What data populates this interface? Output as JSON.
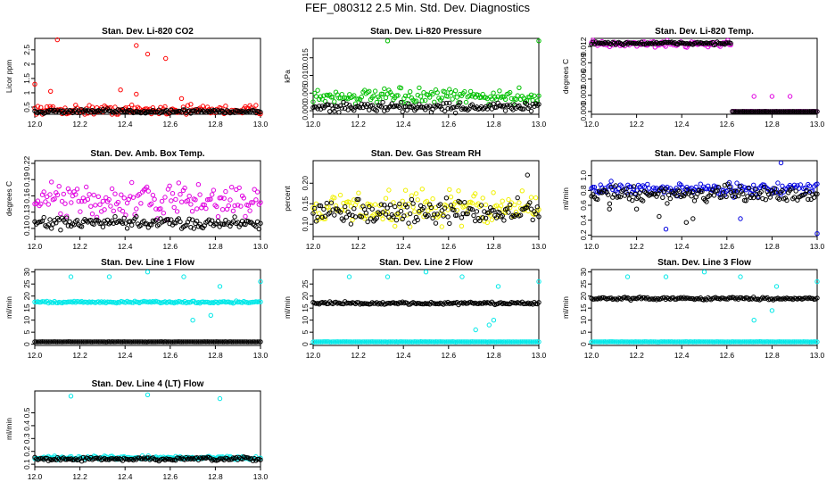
{
  "title": "FEF_080312  2.5 Min. Std. Dev. Diagnostics",
  "chart_data": [
    {
      "type": "scatter",
      "title": "Stan. Dev. Li-820 CO2",
      "ylabel": "Licor ppm",
      "xlim": [
        12.0,
        13.0
      ],
      "ylim": [
        0.25,
        2.9
      ],
      "xticks": [
        12.0,
        12.2,
        12.4,
        12.6,
        12.8,
        13.0
      ],
      "xtick_labels": [
        "12.0",
        "12.2",
        "12.4",
        "12.6",
        "12.8",
        "13.0"
      ],
      "yticks": [
        0.5,
        1.0,
        1.5,
        2.0,
        2.5
      ],
      "ytick_labels": [
        "0.5",
        "1",
        "1.5",
        "2",
        "2.5"
      ],
      "series": [
        {
          "name": "a",
          "color": "#ff0000",
          "base": 0.4,
          "spread": 0.25,
          "outliers": [
            [
              12.1,
              2.85
            ],
            [
              12.45,
              2.65
            ],
            [
              12.5,
              2.35
            ],
            [
              12.58,
              2.2
            ],
            [
              12.0,
              1.3
            ],
            [
              12.07,
              1.05
            ],
            [
              12.38,
              1.1
            ],
            [
              12.45,
              0.95
            ],
            [
              12.65,
              0.8
            ]
          ]
        },
        {
          "name": "b",
          "color": "#000000",
          "base": 0.35,
          "spread": 0.1,
          "outliers": []
        }
      ]
    },
    {
      "type": "scatter",
      "title": "Stan. Dev. Li-820 Pressure",
      "ylabel": "kPa",
      "xlim": [
        12.0,
        13.0
      ],
      "ylim": [
        -0.001,
        0.0205
      ],
      "xticks": [
        12.0,
        12.2,
        12.4,
        12.6,
        12.8,
        13.0
      ],
      "xtick_labels": [
        "12.0",
        "12.2",
        "12.4",
        "12.6",
        "12.8",
        "13.0"
      ],
      "yticks": [
        0.0,
        0.005,
        0.01,
        0.015
      ],
      "ytick_labels": [
        "0.000",
        "0.005",
        "0.010",
        "0.015"
      ],
      "series": [
        {
          "name": "a",
          "color": "#00c000",
          "base": 0.004,
          "spread": 0.003,
          "outliers": [
            [
              12.33,
              0.0198
            ],
            [
              13.0,
              0.0198
            ]
          ]
        },
        {
          "name": "b",
          "color": "#000000",
          "base": 0.001,
          "spread": 0.002,
          "outliers": []
        }
      ]
    },
    {
      "type": "scatter",
      "title": "Stan. Dev. Li-820 Temp.",
      "ylabel": "degrees C",
      "xlim": [
        12.0,
        13.0
      ],
      "ylim": [
        -0.0005,
        0.0135
      ],
      "xticks": [
        12.0,
        12.2,
        12.4,
        12.6,
        12.8,
        13.0
      ],
      "xtick_labels": [
        "12.0",
        "12.2",
        "12.4",
        "12.6",
        "12.8",
        "13.0"
      ],
      "yticks": [
        0.0,
        0.003,
        0.006,
        0.009,
        0.012
      ],
      "ytick_labels": [
        "0.000",
        "0.003",
        "0.006",
        "0.009",
        "0.012"
      ],
      "series": [
        {
          "name": "a",
          "color": "#e000e0",
          "base": 0.0125,
          "spread": 0.0008,
          "break_at": 12.62,
          "after": 0.0,
          "outliers": [
            [
              12.72,
              0.0028
            ],
            [
              12.8,
              0.0028
            ],
            [
              12.88,
              0.0028
            ]
          ]
        },
        {
          "name": "b",
          "color": "#000000",
          "base": 0.0126,
          "spread": 0.0004,
          "break_at": 12.62,
          "after": 0.0,
          "outliers": []
        }
      ]
    },
    {
      "type": "scatter",
      "title": "Stan. Dev. Amb. Box Temp.",
      "ylabel": "degrees C",
      "xlim": [
        12.0,
        13.0
      ],
      "ylim": [
        0.085,
        0.225
      ],
      "xticks": [
        12.0,
        12.2,
        12.4,
        12.6,
        12.8,
        13.0
      ],
      "xtick_labels": [
        "12.0",
        "12.2",
        "12.4",
        "12.6",
        "12.8",
        "13.0"
      ],
      "yticks": [
        0.1,
        0.13,
        0.16,
        0.19,
        0.22
      ],
      "ytick_labels": [
        "0.10",
        "0.13",
        "0.16",
        "0.19",
        "0.22"
      ],
      "series": [
        {
          "name": "a",
          "color": "#e000e0",
          "base": 0.15,
          "spread": 0.045,
          "outliers": []
        },
        {
          "name": "b",
          "color": "#000000",
          "base": 0.11,
          "spread": 0.015,
          "outliers": []
        }
      ]
    },
    {
      "type": "scatter",
      "title": "Stan. Dev. Gas Stream RH",
      "ylabel": "percent",
      "xlim": [
        12.0,
        13.0
      ],
      "ylim": [
        0.07,
        0.255
      ],
      "xticks": [
        12.0,
        12.2,
        12.4,
        12.6,
        12.8,
        13.0
      ],
      "xtick_labels": [
        "12.0",
        "12.2",
        "12.4",
        "12.6",
        "12.8",
        "13.0"
      ],
      "yticks": [
        0.1,
        0.15,
        0.2
      ],
      "ytick_labels": [
        "0.10",
        "0.15",
        "0.20"
      ],
      "series": [
        {
          "name": "a",
          "color": "#f0f000",
          "base": 0.14,
          "spread": 0.06,
          "outliers": []
        },
        {
          "name": "b",
          "color": "#000000",
          "base": 0.13,
          "spread": 0.04,
          "outliers": [
            [
              12.95,
              0.22
            ]
          ]
        }
      ]
    },
    {
      "type": "scatter",
      "title": "Stan. Dev. Sample Flow",
      "ylabel": "ml/min",
      "xlim": [
        12.0,
        13.0
      ],
      "ylim": [
        0.18,
        1.2
      ],
      "xticks": [
        12.0,
        12.2,
        12.4,
        12.6,
        12.8,
        13.0
      ],
      "xtick_labels": [
        "12.0",
        "12.2",
        "12.4",
        "12.6",
        "12.8",
        "13.0"
      ],
      "yticks": [
        0.2,
        0.4,
        0.6,
        0.8,
        1.0
      ],
      "ytick_labels": [
        "0.2",
        "0.4",
        "0.6",
        "0.8",
        "1.0"
      ],
      "series": [
        {
          "name": "a",
          "color": "#0000e0",
          "base": 0.82,
          "spread": 0.12,
          "outliers": [
            [
              12.84,
              1.17
            ],
            [
              12.33,
              0.28
            ],
            [
              12.66,
              0.42
            ],
            [
              13.0,
              0.22
            ]
          ]
        },
        {
          "name": "b",
          "color": "#000000",
          "base": 0.75,
          "spread": 0.15,
          "outliers": [
            [
              12.42,
              0.37
            ],
            [
              12.45,
              0.42
            ],
            [
              12.3,
              0.45
            ],
            [
              12.2,
              0.55
            ],
            [
              12.08,
              0.55
            ]
          ]
        }
      ]
    },
    {
      "type": "scatter",
      "title": "Stan. Dev. Line 1 Flow",
      "ylabel": "ml/min",
      "xlim": [
        12.0,
        13.0
      ],
      "ylim": [
        -0.5,
        31
      ],
      "xticks": [
        12.0,
        12.2,
        12.4,
        12.6,
        12.8,
        13.0
      ],
      "xtick_labels": [
        "12.0",
        "12.2",
        "12.4",
        "12.6",
        "12.8",
        "13.0"
      ],
      "yticks": [
        0,
        5,
        10,
        15,
        20,
        25,
        30
      ],
      "ytick_labels": [
        "0",
        "5",
        "10",
        "15",
        "20",
        "25",
        "30"
      ],
      "series": [
        {
          "name": "a",
          "color": "#00e8e8",
          "base": 17.5,
          "spread": 0.6,
          "outliers": [
            [
              12.16,
              28
            ],
            [
              12.33,
              28
            ],
            [
              12.5,
              30
            ],
            [
              12.66,
              28
            ],
            [
              12.82,
              24
            ],
            [
              13.0,
              26
            ],
            [
              12.78,
              12
            ],
            [
              12.7,
              10
            ]
          ]
        },
        {
          "name": "b",
          "color": "#000000",
          "base": 1.0,
          "spread": 0.1,
          "outliers": []
        }
      ]
    },
    {
      "type": "scatter",
      "title": "Stan. Dev. Line 2 Flow",
      "ylabel": "ml/min",
      "xlim": [
        12.0,
        13.0
      ],
      "ylim": [
        -0.5,
        31
      ],
      "xticks": [
        12.0,
        12.2,
        12.4,
        12.6,
        12.8,
        13.0
      ],
      "xtick_labels": [
        "12.0",
        "12.2",
        "12.4",
        "12.6",
        "12.8",
        "13.0"
      ],
      "yticks": [
        0,
        5,
        10,
        15,
        20,
        25
      ],
      "ytick_labels": [
        "0",
        "5",
        "10",
        "15",
        "20",
        "25"
      ],
      "series": [
        {
          "name": "a",
          "color": "#00e8e8",
          "base": 1.0,
          "spread": 0.1,
          "outliers": [
            [
              12.16,
              28
            ],
            [
              12.33,
              28
            ],
            [
              12.5,
              30
            ],
            [
              12.66,
              28
            ],
            [
              12.82,
              24
            ],
            [
              13.0,
              26
            ],
            [
              12.78,
              8
            ],
            [
              12.72,
              6
            ],
            [
              12.8,
              10
            ]
          ]
        },
        {
          "name": "b",
          "color": "#000000",
          "base": 17.0,
          "spread": 0.8,
          "outliers": []
        }
      ]
    },
    {
      "type": "scatter",
      "title": "Stan. Dev. Line 3 Flow",
      "ylabel": "ml/min",
      "xlim": [
        12.0,
        13.0
      ],
      "ylim": [
        -0.5,
        31
      ],
      "xticks": [
        12.0,
        12.2,
        12.4,
        12.6,
        12.8,
        13.0
      ],
      "xtick_labels": [
        "12.0",
        "12.2",
        "12.4",
        "12.6",
        "12.8",
        "13.0"
      ],
      "yticks": [
        0,
        5,
        10,
        15,
        20,
        25,
        30
      ],
      "ytick_labels": [
        "0",
        "5",
        "10",
        "15",
        "20",
        "25",
        "30"
      ],
      "series": [
        {
          "name": "a",
          "color": "#00e8e8",
          "base": 1.0,
          "spread": 0.1,
          "outliers": [
            [
              12.16,
              28
            ],
            [
              12.33,
              28
            ],
            [
              12.5,
              30
            ],
            [
              12.66,
              28
            ],
            [
              12.82,
              24
            ],
            [
              13.0,
              26
            ],
            [
              12.72,
              10
            ],
            [
              12.8,
              14
            ]
          ]
        },
        {
          "name": "b",
          "color": "#000000",
          "base": 19.0,
          "spread": 0.8,
          "outliers": []
        }
      ]
    },
    {
      "type": "scatter",
      "title": "Stan. Dev. Line 4 (LT) Flow",
      "ylabel": "ml/min",
      "xlim": [
        12.0,
        13.0
      ],
      "ylim": [
        0.08,
        0.67
      ],
      "xticks": [
        12.0,
        12.2,
        12.4,
        12.6,
        12.8,
        13.0
      ],
      "xtick_labels": [
        "12.0",
        "12.2",
        "12.4",
        "12.6",
        "12.8",
        "13.0"
      ],
      "yticks": [
        0.1,
        0.2,
        0.3,
        0.4,
        0.5
      ],
      "ytick_labels": [
        "0.1",
        "0.2",
        "0.3",
        "0.4",
        "0.5"
      ],
      "series": [
        {
          "name": "a",
          "color": "#00e8e8",
          "base": 0.15,
          "spread": 0.02,
          "outliers": [
            [
              12.16,
              0.63
            ],
            [
              12.5,
              0.64
            ],
            [
              12.82,
              0.61
            ]
          ]
        },
        {
          "name": "b",
          "color": "#000000",
          "base": 0.14,
          "spread": 0.02,
          "outliers": []
        }
      ]
    }
  ]
}
